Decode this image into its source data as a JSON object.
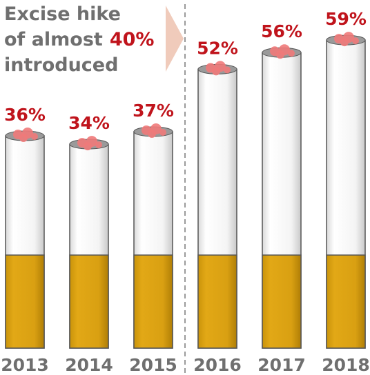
{
  "chart_data": {
    "type": "bar",
    "categories": [
      "2013",
      "2014",
      "2015",
      "2016",
      "2017",
      "2018"
    ],
    "values": [
      36,
      34,
      37,
      52,
      56,
      59
    ],
    "value_labels": [
      "36%",
      "34%",
      "37%",
      "52%",
      "56%",
      "59%"
    ],
    "color": "#ffffff",
    "label_color": "#c0141c",
    "ylim": [
      -15,
      62
    ],
    "annotation": {
      "lines": [
        "Excise hike",
        "of almost",
        "introduced"
      ],
      "highlight": "40%"
    }
  }
}
